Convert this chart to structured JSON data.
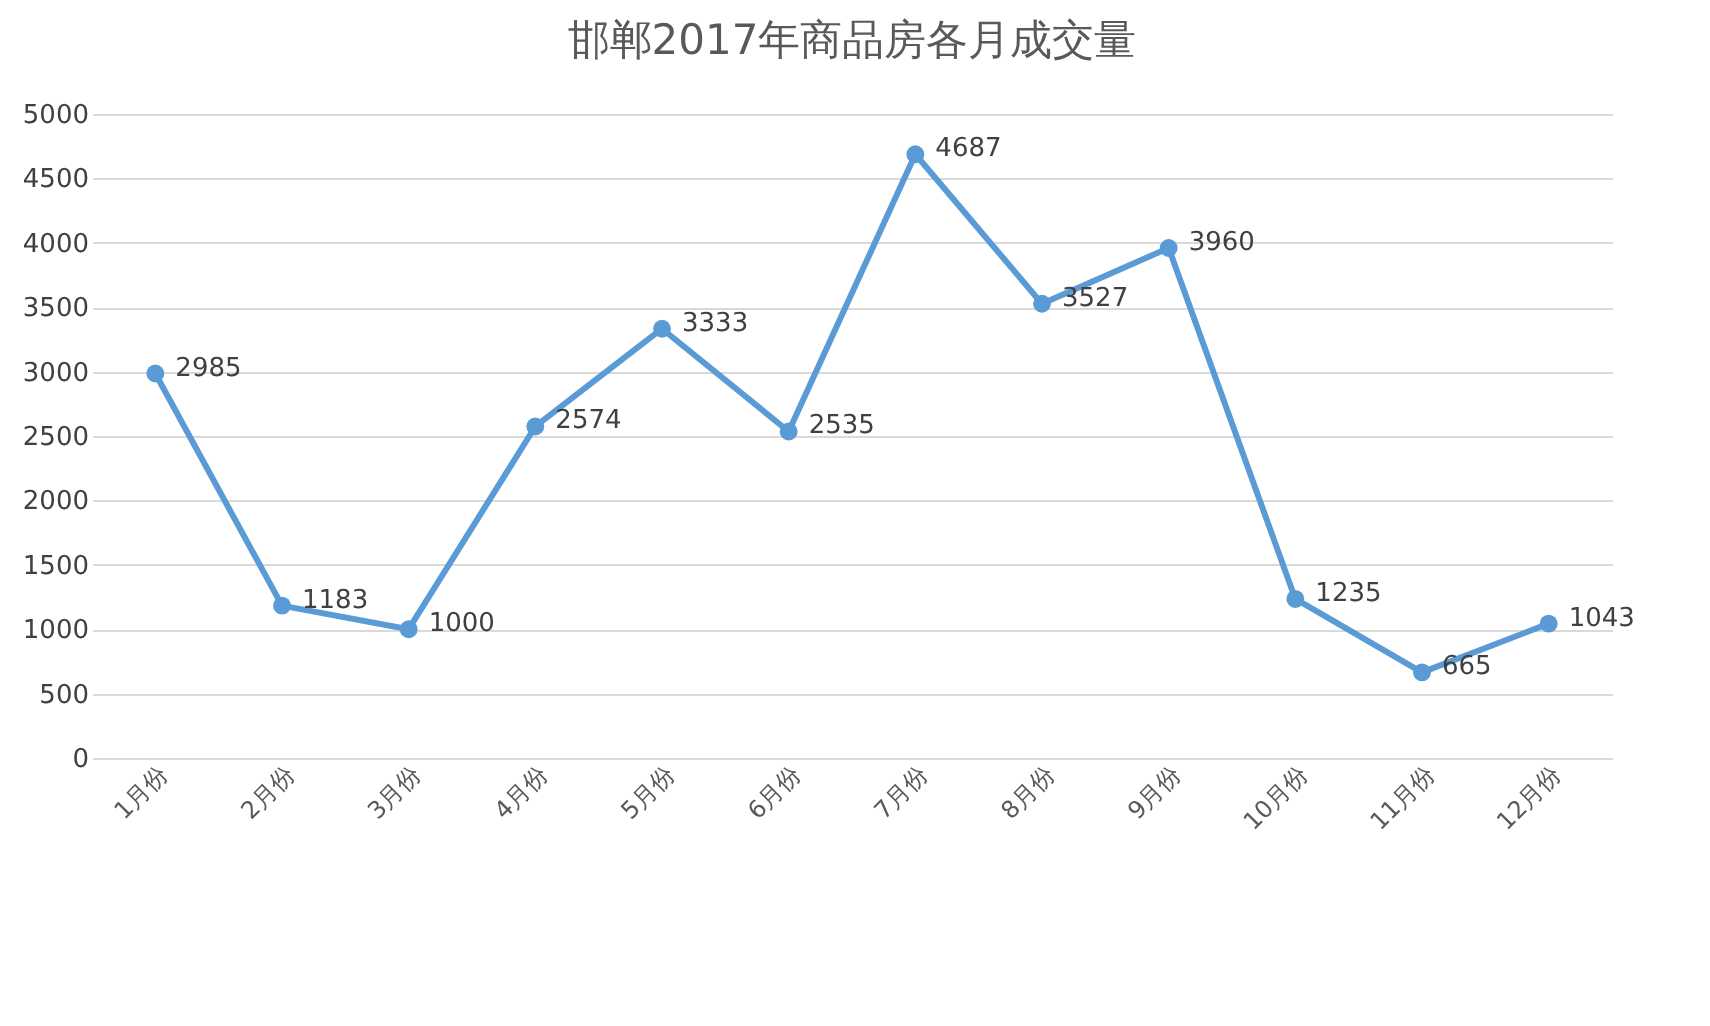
{
  "chart_data": {
    "type": "line",
    "title": "邯郸2017年商品房各月成交量",
    "categories": [
      "1月份",
      "2月份",
      "3月份",
      "4月份",
      "5月份",
      "6月份",
      "7月份",
      "8月份",
      "9月份",
      "10月份",
      "11月份",
      "12月份"
    ],
    "series": [
      {
        "color": "#5b9bd5",
        "values": [
          2985,
          1183,
          1000,
          2574,
          3333,
          2535,
          4687,
          3527,
          3960,
          1235,
          665,
          1043
        ]
      }
    ],
    "ylim": [
      0,
      5000
    ],
    "yticks": [
      0,
      500,
      1000,
      1500,
      2000,
      2500,
      3000,
      3500,
      4000,
      4500,
      5000
    ],
    "grid": "y",
    "marker": "circle",
    "line_style": "solid",
    "data_labels": true
  }
}
